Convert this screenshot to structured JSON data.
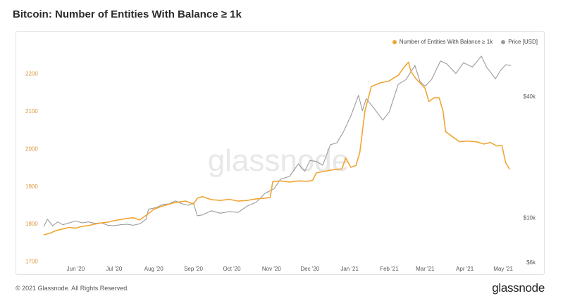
{
  "title": "Bitcoin: Number of Entities With Balance ≥ 1k",
  "footer": {
    "copyright": "© 2021 Glassnode. All Rights Reserved.",
    "logo": "glassnode"
  },
  "watermark": "glassnode",
  "colors": {
    "entities": "#f0a534",
    "price": "#9b9b9b",
    "left_axis": "#d99a3a"
  },
  "chart_data": {
    "type": "line",
    "title": "Bitcoin: Number of Entities With Balance ≥ 1k",
    "x_tick_labels": [
      "Jun '20",
      "Jul '20",
      "Aug '20",
      "Sep '20",
      "Oct '20",
      "Nov '20",
      "Dec '20",
      "Jan '21",
      "Feb '21",
      "Mar '21",
      "Apr '21",
      "May '21"
    ],
    "x_tick_dates": [
      "2020-06-01",
      "2020-07-01",
      "2020-08-01",
      "2020-09-01",
      "2020-10-01",
      "2020-11-01",
      "2020-12-01",
      "2021-01-01",
      "2021-02-01",
      "2021-03-01",
      "2021-04-01",
      "2021-05-01"
    ],
    "x_range": [
      "2020-05-07",
      "2021-05-07"
    ],
    "legend": [
      "Number of Entities With Balance ≥ 1k",
      "Price [USD]"
    ],
    "legend_position": "top-right",
    "y_left": {
      "ticks": [
        1700,
        1800,
        1900,
        2000,
        2100,
        2200
      ],
      "tick_labels": [
        "1700",
        "1800",
        "1900",
        "2000",
        "2100",
        "2200"
      ],
      "range": [
        1690,
        2255
      ]
    },
    "y_right": {
      "scale": "log",
      "ticks": [
        6000,
        10000,
        40000
      ],
      "tick_labels": [
        "$6k",
        "$10k",
        "$40k"
      ],
      "range": [
        5800,
        66000
      ]
    },
    "grid": false,
    "series": [
      {
        "name": "Number of Entities With Balance ≥ 1k",
        "axis": "left",
        "color": "#f0a534",
        "points": [
          [
            "2020-05-07",
            1770
          ],
          [
            "2020-05-12",
            1775
          ],
          [
            "2020-05-17",
            1782
          ],
          [
            "2020-05-22",
            1786
          ],
          [
            "2020-05-27",
            1790
          ],
          [
            "2020-06-01",
            1788
          ],
          [
            "2020-06-06",
            1793
          ],
          [
            "2020-06-11",
            1795
          ],
          [
            "2020-06-16",
            1799
          ],
          [
            "2020-06-21",
            1802
          ],
          [
            "2020-06-26",
            1804
          ],
          [
            "2020-07-01",
            1808
          ],
          [
            "2020-07-06",
            1811
          ],
          [
            "2020-07-11",
            1814
          ],
          [
            "2020-07-16",
            1816
          ],
          [
            "2020-07-21",
            1810
          ],
          [
            "2020-07-26",
            1822
          ],
          [
            "2020-08-01",
            1838
          ],
          [
            "2020-08-06",
            1845
          ],
          [
            "2020-08-11",
            1850
          ],
          [
            "2020-08-16",
            1855
          ],
          [
            "2020-08-21",
            1858
          ],
          [
            "2020-08-26",
            1860
          ],
          [
            "2020-09-01",
            1852
          ],
          [
            "2020-09-04",
            1868
          ],
          [
            "2020-09-08",
            1872
          ],
          [
            "2020-09-15",
            1864
          ],
          [
            "2020-09-22",
            1862
          ],
          [
            "2020-09-29",
            1865
          ],
          [
            "2020-10-06",
            1860
          ],
          [
            "2020-10-13",
            1862
          ],
          [
            "2020-10-20",
            1866
          ],
          [
            "2020-10-27",
            1868
          ],
          [
            "2020-10-31",
            1870
          ],
          [
            "2020-11-02",
            1912
          ],
          [
            "2020-11-08",
            1914
          ],
          [
            "2020-11-15",
            1911
          ],
          [
            "2020-11-22",
            1914
          ],
          [
            "2020-11-29",
            1913
          ],
          [
            "2020-12-03",
            1915
          ],
          [
            "2020-12-06",
            1935
          ],
          [
            "2020-12-13",
            1940
          ],
          [
            "2020-12-20",
            1944
          ],
          [
            "2020-12-26",
            1946
          ],
          [
            "2020-12-29",
            1975
          ],
          [
            "2021-01-02",
            1950
          ],
          [
            "2021-01-06",
            1955
          ],
          [
            "2021-01-09",
            1990
          ],
          [
            "2021-01-13",
            2100
          ],
          [
            "2021-01-18",
            2165
          ],
          [
            "2021-01-25",
            2175
          ],
          [
            "2021-02-01",
            2180
          ],
          [
            "2021-02-08",
            2195
          ],
          [
            "2021-02-13",
            2218
          ],
          [
            "2021-02-16",
            2230
          ],
          [
            "2021-02-18",
            2205
          ],
          [
            "2021-02-22",
            2185
          ],
          [
            "2021-02-25",
            2175
          ],
          [
            "2021-03-01",
            2160
          ],
          [
            "2021-03-04",
            2125
          ],
          [
            "2021-03-08",
            2135
          ],
          [
            "2021-03-12",
            2135
          ],
          [
            "2021-03-15",
            2100
          ],
          [
            "2021-03-17",
            2045
          ],
          [
            "2021-03-23",
            2030
          ],
          [
            "2021-03-28",
            2018
          ],
          [
            "2021-04-03",
            2020
          ],
          [
            "2021-04-10",
            2018
          ],
          [
            "2021-04-16",
            2012
          ],
          [
            "2021-04-21",
            2016
          ],
          [
            "2021-04-26",
            2007
          ],
          [
            "2021-04-30",
            2008
          ],
          [
            "2021-05-03",
            1962
          ],
          [
            "2021-05-06",
            1945
          ]
        ]
      },
      {
        "name": "Price [USD]",
        "axis": "right",
        "color": "#9b9b9b",
        "points": [
          [
            "2020-05-07",
            9000
          ],
          [
            "2020-05-10",
            9800
          ],
          [
            "2020-05-14",
            9100
          ],
          [
            "2020-05-18",
            9500
          ],
          [
            "2020-05-22",
            9200
          ],
          [
            "2020-05-27",
            9400
          ],
          [
            "2020-06-01",
            9600
          ],
          [
            "2020-06-06",
            9400
          ],
          [
            "2020-06-11",
            9500
          ],
          [
            "2020-06-16",
            9350
          ],
          [
            "2020-06-21",
            9400
          ],
          [
            "2020-06-26",
            9150
          ],
          [
            "2020-07-01",
            9100
          ],
          [
            "2020-07-06",
            9200
          ],
          [
            "2020-07-11",
            9250
          ],
          [
            "2020-07-16",
            9150
          ],
          [
            "2020-07-21",
            9300
          ],
          [
            "2020-07-26",
            9800
          ],
          [
            "2020-07-28",
            11000
          ],
          [
            "2020-08-03",
            11200
          ],
          [
            "2020-08-08",
            11600
          ],
          [
            "2020-08-13",
            11700
          ],
          [
            "2020-08-18",
            12100
          ],
          [
            "2020-08-23",
            11700
          ],
          [
            "2020-08-28",
            11500
          ],
          [
            "2020-09-01",
            11800
          ],
          [
            "2020-09-04",
            10200
          ],
          [
            "2020-09-08",
            10300
          ],
          [
            "2020-09-15",
            10800
          ],
          [
            "2020-09-22",
            10500
          ],
          [
            "2020-09-29",
            10700
          ],
          [
            "2020-10-06",
            10600
          ],
          [
            "2020-10-13",
            11400
          ],
          [
            "2020-10-20",
            11900
          ],
          [
            "2020-10-27",
            13200
          ],
          [
            "2020-11-03",
            13900
          ],
          [
            "2020-11-08",
            15500
          ],
          [
            "2020-11-15",
            16000
          ],
          [
            "2020-11-22",
            18500
          ],
          [
            "2020-11-27",
            17000
          ],
          [
            "2020-12-01",
            19200
          ],
          [
            "2020-12-06",
            19000
          ],
          [
            "2020-12-11",
            18200
          ],
          [
            "2020-12-17",
            23000
          ],
          [
            "2020-12-22",
            23500
          ],
          [
            "2020-12-27",
            26500
          ],
          [
            "2021-01-02",
            32000
          ],
          [
            "2021-01-08",
            40500
          ],
          [
            "2021-01-11",
            34000
          ],
          [
            "2021-01-14",
            39000
          ],
          [
            "2021-01-20",
            35000
          ],
          [
            "2021-01-27",
            30500
          ],
          [
            "2021-02-01",
            33500
          ],
          [
            "2021-02-08",
            46000
          ],
          [
            "2021-02-14",
            48500
          ],
          [
            "2021-02-21",
            57000
          ],
          [
            "2021-02-25",
            47500
          ],
          [
            "2021-03-01",
            45000
          ],
          [
            "2021-03-06",
            48500
          ],
          [
            "2021-03-13",
            60000
          ],
          [
            "2021-03-18",
            58000
          ],
          [
            "2021-03-25",
            52000
          ],
          [
            "2021-03-31",
            58800
          ],
          [
            "2021-04-07",
            56000
          ],
          [
            "2021-04-14",
            63500
          ],
          [
            "2021-04-18",
            56000
          ],
          [
            "2021-04-25",
            49000
          ],
          [
            "2021-04-29",
            54000
          ],
          [
            "2021-05-03",
            57500
          ],
          [
            "2021-05-07",
            57000
          ]
        ]
      }
    ]
  }
}
